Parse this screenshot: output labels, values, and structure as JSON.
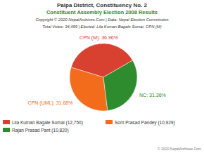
{
  "chart_data": {
    "type": "pie",
    "title": "Palpa District, Constituency No. 2",
    "subtitle": "Constituent Assembly Election 2008 Results",
    "annotations": [
      "Copyright © 2020 NepalArchives.Com | Data: Nepal Election Commission",
      "Total Votes: 34,499 | Elected: Lila Kumari Bagale Somai, CPN (M)",
      "© 2020 NepalArchives.Com"
    ],
    "categories": [
      "CPN (M)",
      "CPN (UML)",
      "NC"
    ],
    "values": [
      36.96,
      31.68,
      31.36
    ],
    "value_labels": [
      "CPN (M): 36.96%",
      "CPN (UML): 31.68%",
      "NC: 31.36%"
    ],
    "colors": [
      "#d8412f",
      "#f26c1c",
      "#2e8b2e"
    ],
    "data_labels": true,
    "legend": "bottom",
    "legend_labels": [
      "Lila Kumari Bagale Somai (12,750)",
      "Som Prasad Pandey (10,929)",
      "Rajan Prasad Pant (10,820)"
    ]
  }
}
